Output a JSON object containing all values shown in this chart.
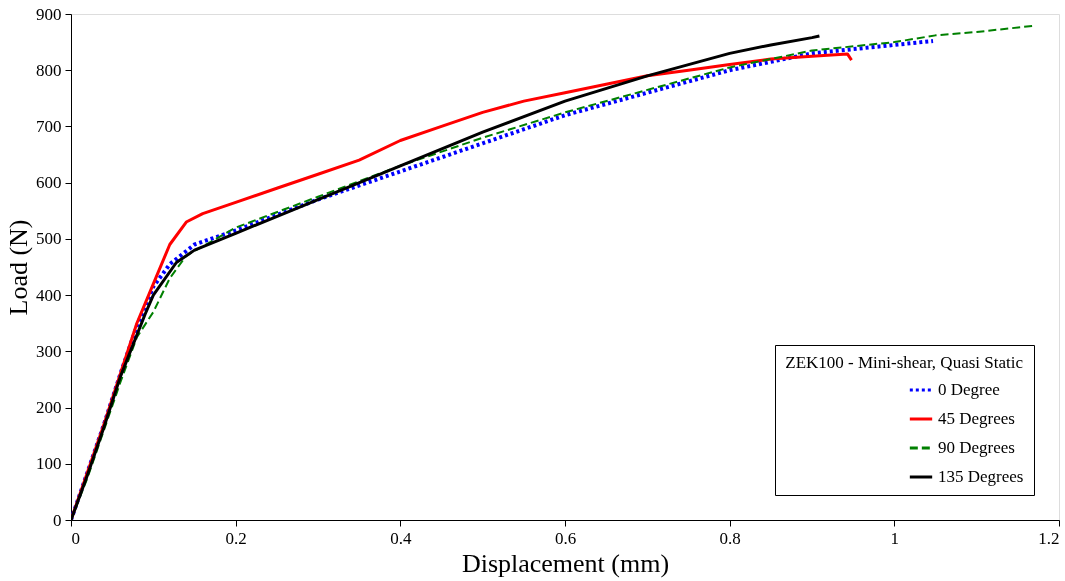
{
  "chart_data": {
    "type": "line",
    "xlabel": "Displacement (mm)",
    "ylabel": "Load (N)",
    "legend_title": "ZEK100 - Mini-shear, Quasi Static",
    "legend": "bottom right",
    "grid": false,
    "marker": "none",
    "xlim": [
      0,
      1.2
    ],
    "xticks": [
      0,
      0.2,
      0.4,
      0.6,
      0.8,
      1,
      1.2
    ],
    "ylim": [
      0,
      900
    ],
    "yticks": [
      0,
      100,
      200,
      300,
      400,
      500,
      600,
      700,
      800,
      900
    ],
    "series": [
      {
        "name": "0 Degree",
        "color": "#0000ff",
        "line_style": "dotted",
        "x": [
          0,
          0.02,
          0.04,
          0.06,
          0.08,
          0.1,
          0.12,
          0.15,
          0.2,
          0.3,
          0.4,
          0.5,
          0.6,
          0.7,
          0.8,
          0.9,
          1.0,
          1.047
        ],
        "values": [
          0,
          85,
          170,
          260,
          345,
          415,
          455,
          490,
          515,
          570,
          620,
          670,
          720,
          760,
          800,
          830,
          845,
          852
        ]
      },
      {
        "name": "45 Degrees",
        "color": "#ff0000",
        "line_style": "solid",
        "x": [
          0,
          0.02,
          0.04,
          0.06,
          0.08,
          0.1,
          0.12,
          0.14,
          0.16,
          0.2,
          0.25,
          0.3,
          0.35,
          0.4,
          0.45,
          0.5,
          0.55,
          0.6,
          0.65,
          0.7,
          0.75,
          0.8,
          0.85,
          0.9,
          0.943,
          0.948
        ],
        "values": [
          0,
          85,
          170,
          260,
          350,
          420,
          490,
          530,
          545,
          565,
          590,
          615,
          640,
          675,
          700,
          725,
          745,
          760,
          775,
          790,
          800,
          810,
          820,
          825,
          829,
          818
        ]
      },
      {
        "name": "90 Degrees",
        "color": "#008000",
        "line_style": "dashed",
        "x": [
          0,
          0.02,
          0.04,
          0.06,
          0.08,
          0.1,
          0.12,
          0.14,
          0.2,
          0.3,
          0.4,
          0.5,
          0.6,
          0.7,
          0.8,
          0.9,
          1.0,
          1.05,
          1.1,
          1.169
        ],
        "values": [
          0,
          75,
          160,
          245,
          325,
          370,
          430,
          470,
          520,
          575,
          630,
          680,
          725,
          765,
          805,
          835,
          850,
          862,
          868,
          879
        ]
      },
      {
        "name": "135 Degrees",
        "color": "#000000",
        "line_style": "solid",
        "x": [
          0,
          0.02,
          0.04,
          0.06,
          0.09,
          0.1,
          0.128,
          0.15,
          0.2,
          0.3,
          0.4,
          0.5,
          0.6,
          0.7,
          0.8,
          0.85,
          0.9,
          0.909
        ],
        "values": [
          0,
          80,
          165,
          255,
          366,
          400,
          458,
          480,
          510,
          570,
          630,
          690,
          745,
          790,
          830,
          845,
          858,
          861
        ]
      }
    ]
  }
}
